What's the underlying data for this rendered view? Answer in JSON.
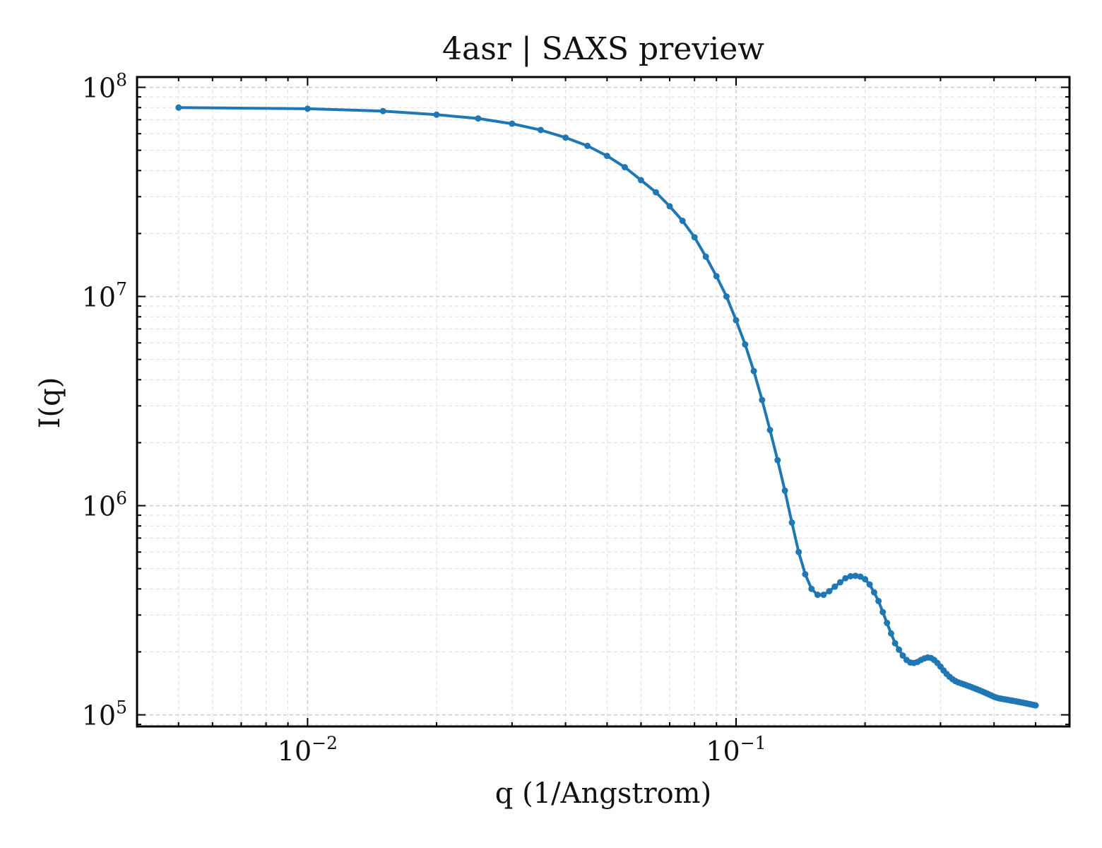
{
  "chart_data": {
    "type": "line",
    "title": "4asr | SAXS preview",
    "xlabel": "q (1/Angstrom)",
    "ylabel": "I(q)",
    "xscale": "log",
    "yscale": "log",
    "xlim": [
      0.004,
      0.6
    ],
    "ylim": [
      88000,
      112000000
    ],
    "grid": true,
    "grid_style": "dashed, major and minor",
    "line_color": "#1f77b4",
    "markers": "small filled circles",
    "x_ticks": [
      {
        "base": "10",
        "exp": "−2",
        "value": 0.01
      },
      {
        "base": "10",
        "exp": "−1",
        "value": 0.1
      }
    ],
    "y_ticks": [
      {
        "base": "10",
        "exp": "5",
        "value": 100000
      },
      {
        "base": "10",
        "exp": "6",
        "value": 1000000
      },
      {
        "base": "10",
        "exp": "7",
        "value": 10000000
      },
      {
        "base": "10",
        "exp": "8",
        "value": 100000000
      }
    ],
    "series": [
      {
        "x": [
          0.005,
          0.01,
          0.015,
          0.02,
          0.025,
          0.03,
          0.035,
          0.04,
          0.045,
          0.05,
          0.055,
          0.06,
          0.065,
          0.07,
          0.075,
          0.08,
          0.085,
          0.09,
          0.095,
          0.1,
          0.105,
          0.11,
          0.115,
          0.12,
          0.125,
          0.13,
          0.135,
          0.14,
          0.145,
          0.15,
          0.155,
          0.16,
          0.165,
          0.17,
          0.175,
          0.18,
          0.185,
          0.19,
          0.195,
          0.2,
          0.205,
          0.21,
          0.215,
          0.22,
          0.225,
          0.23,
          0.235,
          0.24,
          0.245,
          0.25,
          0.255,
          0.26,
          0.265,
          0.27,
          0.275,
          0.28,
          0.285,
          0.29,
          0.295,
          0.3,
          0.305,
          0.31,
          0.315,
          0.32,
          0.325,
          0.33,
          0.335,
          0.34,
          0.345,
          0.35,
          0.355,
          0.36,
          0.365,
          0.37,
          0.375,
          0.38,
          0.385,
          0.39,
          0.395,
          0.4,
          0.405,
          0.41,
          0.415,
          0.42,
          0.425,
          0.43,
          0.435,
          0.44,
          0.445,
          0.45,
          0.455,
          0.46,
          0.465,
          0.47,
          0.475,
          0.48,
          0.485,
          0.49,
          0.495,
          0.5
        ],
        "y": [
          80000000,
          79000000,
          77000000,
          74000000,
          71000000,
          67000000,
          62500000,
          57500000,
          52500000,
          47000000,
          41500000,
          36000000,
          31500000,
          27000000,
          23000000,
          19200000,
          15500000,
          12500000,
          10000000,
          7700000,
          5900000,
          4400000,
          3200000,
          2300000,
          1650000,
          1180000,
          830000,
          600000,
          470000,
          400000,
          375000,
          375000,
          390000,
          410000,
          430000,
          450000,
          460000,
          462000,
          458000,
          445000,
          420000,
          385000,
          350000,
          310000,
          275000,
          245000,
          220000,
          205000,
          192000,
          183000,
          178000,
          177000,
          179000,
          183000,
          186000,
          188000,
          187000,
          183000,
          177000,
          170000,
          163000,
          157000,
          152000,
          148000,
          145000,
          143000,
          141500,
          140000,
          138500,
          137000,
          135500,
          134000,
          132500,
          131000,
          129500,
          128000,
          126500,
          125000,
          123500,
          122000,
          121000,
          120000,
          119500,
          119000,
          118500,
          118000,
          117500,
          117000,
          116500,
          116000,
          115500,
          115000,
          114500,
          114000,
          113500,
          113000,
          112500,
          112000,
          111500,
          111000
        ]
      }
    ]
  }
}
